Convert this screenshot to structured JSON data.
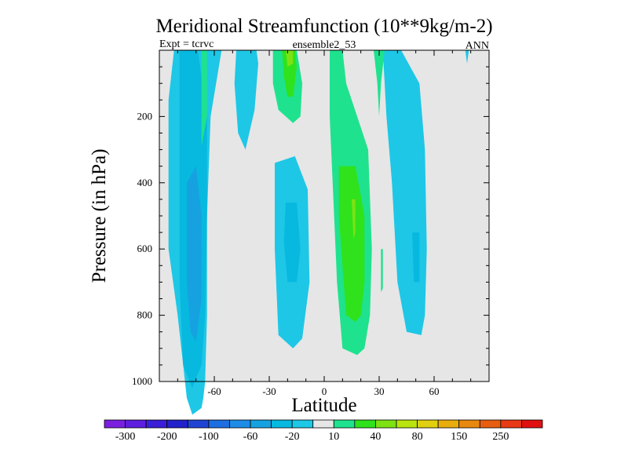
{
  "chart_data": {
    "type": "contour",
    "title": "Meridional Streamfunction (10**9kg/m-2)",
    "left_label": "Expt = tcrvc",
    "center_label": "ensemble2_53",
    "right_label": "ANN",
    "xlabel": "Latitude",
    "ylabel": "Pressure (in hPa)",
    "xlim": [
      -90,
      90
    ],
    "ylim": [
      1000,
      0
    ],
    "x_ticks": [
      -60,
      -30,
      0,
      30,
      60
    ],
    "x_tick_labels": [
      "-60",
      "-30",
      "0",
      "30",
      "60"
    ],
    "y_ticks": [
      200,
      400,
      600,
      800,
      1000
    ],
    "y_tick_labels": [
      "200",
      "400",
      "600",
      "800",
      "1000"
    ],
    "colorbar": {
      "colors": [
        "#7a1fe0",
        "#5e1ee0",
        "#3b1fd8",
        "#2222cc",
        "#1f44d4",
        "#1d6ee0",
        "#1e8ce6",
        "#16a2e0",
        "#07b8df",
        "#1ec7e6",
        "#e6e6e6",
        "#1fe28e",
        "#2fe21c",
        "#7ce214",
        "#b9e40f",
        "#e0d010",
        "#e8ac0c",
        "#e8880e",
        "#e85e10",
        "#e83a14",
        "#e01010"
      ],
      "labels": [
        "-300",
        "-200",
        "-100",
        "-60",
        "-20",
        "10",
        "40",
        "80",
        "150",
        "250"
      ]
    },
    "regions": [
      {
        "level": "-20",
        "color": "#1ec7e6",
        "points": [
          [
            -82,
            0
          ],
          [
            -56,
            0
          ],
          [
            -62,
            20
          ],
          [
            -64,
            50
          ],
          [
            -64,
            80
          ],
          [
            -65,
            100
          ],
          [
            -66,
            105
          ],
          [
            -67,
            108
          ],
          [
            -72,
            110
          ],
          [
            -75,
            105
          ],
          [
            -80,
            80
          ],
          [
            -85,
            60
          ],
          [
            -85,
            15
          ]
        ]
      },
      {
        "level": "-60",
        "color": "#07b8df",
        "points": [
          [
            -79,
            0
          ],
          [
            -69,
            0
          ],
          [
            -64,
            20
          ],
          [
            -64,
            50
          ],
          [
            -65,
            80
          ],
          [
            -67,
            95
          ],
          [
            -72,
            102
          ],
          [
            -77,
            95
          ],
          [
            -79,
            70
          ]
        ]
      },
      {
        "level": "-100",
        "color": "#16a2e0",
        "points": [
          [
            -75,
            40
          ],
          [
            -70,
            35
          ],
          [
            -67,
            50
          ],
          [
            -67,
            75
          ],
          [
            -70,
            88
          ],
          [
            -73,
            85
          ],
          [
            -75,
            70
          ]
        ]
      },
      {
        "level": "-20",
        "color": "#1ec7e6",
        "points": [
          [
            -48,
            0
          ],
          [
            -37,
            0
          ],
          [
            -36,
            4
          ],
          [
            -38,
            18
          ],
          [
            -43,
            30
          ],
          [
            -47,
            25
          ],
          [
            -49,
            10
          ]
        ]
      },
      {
        "level": "-20",
        "color": "#1ec7e6",
        "points": [
          [
            -27,
            34
          ],
          [
            -16,
            32
          ],
          [
            -9,
            42
          ],
          [
            -8,
            70
          ],
          [
            -12,
            87
          ],
          [
            -17,
            90
          ],
          [
            -25,
            86
          ],
          [
            -27,
            60
          ]
        ]
      },
      {
        "level": "-60",
        "color": "#07b8df",
        "points": [
          [
            -21,
            46
          ],
          [
            -15,
            46
          ],
          [
            -13,
            60
          ],
          [
            -15,
            70
          ],
          [
            -20,
            70
          ],
          [
            -22,
            58
          ]
        ]
      },
      {
        "level": "-20",
        "color": "#1ec7e6",
        "points": [
          [
            32,
            0
          ],
          [
            42,
            0
          ],
          [
            52,
            10
          ],
          [
            55,
            30
          ],
          [
            56,
            60
          ],
          [
            55,
            80
          ],
          [
            53,
            86
          ],
          [
            45,
            85
          ],
          [
            40,
            70
          ],
          [
            37,
            40
          ],
          [
            34,
            20
          ]
        ]
      },
      {
        "level": "-60",
        "color": "#07b8df",
        "points": [
          [
            48,
            55
          ],
          [
            52,
            55
          ],
          [
            52,
            70
          ],
          [
            49,
            70
          ]
        ]
      },
      {
        "level": "10",
        "color": "#1fe28e",
        "points": [
          [
            -28,
            0
          ],
          [
            -15,
            0
          ],
          [
            -12,
            10
          ],
          [
            -13,
            20
          ],
          [
            -17,
            22
          ],
          [
            -25,
            18
          ],
          [
            -28,
            10
          ]
        ]
      },
      {
        "level": "40",
        "color": "#2fe21c",
        "points": [
          [
            -23,
            0
          ],
          [
            -16,
            0
          ],
          [
            -15,
            5
          ],
          [
            -17,
            14
          ],
          [
            -20,
            14
          ],
          [
            -22,
            8
          ]
        ]
      },
      {
        "level": "80",
        "color": "#7ce214",
        "points": [
          [
            -21,
            0
          ],
          [
            -17,
            0
          ],
          [
            -17,
            4
          ],
          [
            -20,
            5
          ]
        ]
      },
      {
        "level": "10",
        "color": "#1fe28e",
        "points": [
          [
            3,
            0
          ],
          [
            10,
            0
          ],
          [
            12,
            10
          ],
          [
            18,
            20
          ],
          [
            24,
            30
          ],
          [
            26,
            60
          ],
          [
            25,
            80
          ],
          [
            22,
            90
          ],
          [
            18,
            92
          ],
          [
            10,
            90
          ],
          [
            7,
            70
          ],
          [
            5,
            45
          ],
          [
            3,
            20
          ]
        ]
      },
      {
        "level": "40",
        "color": "#2fe21c",
        "points": [
          [
            8,
            35
          ],
          [
            17,
            35
          ],
          [
            22,
            50
          ],
          [
            22,
            70
          ],
          [
            20,
            80
          ],
          [
            17,
            82
          ],
          [
            12,
            80
          ],
          [
            10,
            65
          ],
          [
            8,
            50
          ]
        ]
      },
      {
        "level": "80",
        "color": "#7ce214",
        "points": [
          [
            15,
            45
          ],
          [
            17,
            45
          ],
          [
            17,
            55
          ],
          [
            16,
            57
          ]
        ]
      },
      {
        "level": "10",
        "color": "#1fe28e",
        "points": [
          [
            -67,
            0
          ],
          [
            -64,
            0
          ],
          [
            -64,
            20
          ],
          [
            -67,
            29
          ]
        ]
      },
      {
        "level": "10",
        "color": "#1fe28e",
        "points": [
          [
            27,
            0
          ],
          [
            33,
            0
          ],
          [
            31,
            10
          ],
          [
            30,
            20
          ],
          [
            29,
            10
          ]
        ]
      },
      {
        "level": "10",
        "color": "#1fe28e",
        "points": [
          [
            31,
            60
          ],
          [
            32,
            60
          ],
          [
            32,
            72
          ],
          [
            31,
            73
          ]
        ]
      },
      {
        "level": "-20",
        "color": "#1ec7e6",
        "points": [
          [
            77,
            0
          ],
          [
            79,
            0
          ],
          [
            78,
            4
          ]
        ]
      }
    ]
  }
}
